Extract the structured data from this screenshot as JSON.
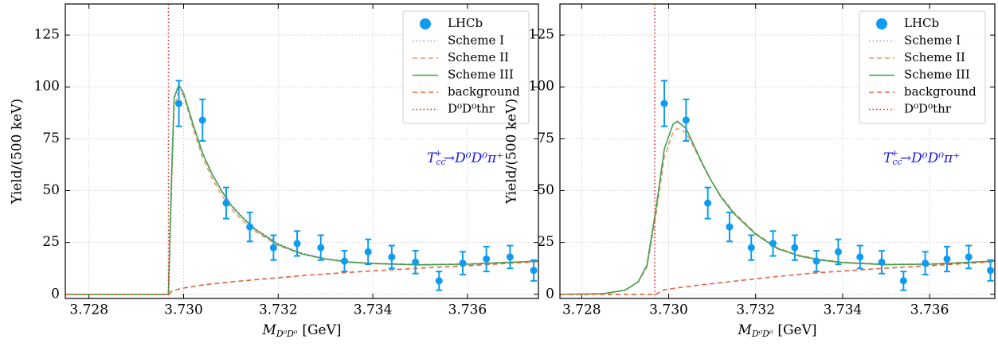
{
  "chart_data": [
    {
      "type": "line",
      "y_label": "Yield/(500 keV)",
      "x_label": {
        "symbol": "M",
        "sub": "D⁰D⁰",
        "unit": "[GeV]"
      },
      "annotation": {
        "main": "T",
        "sub": "cc",
        "sup": "+",
        "rest": "→D⁰D⁰π⁺"
      },
      "xlim": [
        3.7275,
        3.7375
      ],
      "ylim": [
        -2,
        140
      ],
      "xticks": [
        3.728,
        {
          "value": 3.73,
          "label": "3.730"
        },
        3.732,
        3.734,
        3.736
      ],
      "yticks": [
        0,
        25,
        50,
        75,
        100,
        125
      ],
      "grid": true,
      "legend": "upper right",
      "points": {
        "name": "LHCb",
        "color": "#0f9cf0",
        "x": [
          3.7299,
          3.7304,
          3.7309,
          3.7314,
          3.7319,
          3.7324,
          3.7329,
          3.7334,
          3.7339,
          3.7344,
          3.7349,
          3.7354,
          3.7359,
          3.7364,
          3.7369,
          3.7374
        ],
        "values": [
          92,
          84,
          44,
          32.5,
          22.5,
          24.5,
          22.5,
          16,
          20.5,
          18,
          15.5,
          6.5,
          15,
          17,
          18,
          11.5
        ],
        "errors": [
          11,
          10,
          7.5,
          7,
          6,
          6,
          6,
          5,
          6,
          5.5,
          5.5,
          4.5,
          5.5,
          6,
          5.5,
          5
        ]
      },
      "x": [
        3.7275,
        3.72968,
        3.72975,
        3.7298,
        3.7299,
        3.73,
        3.7302,
        3.7304,
        3.7306,
        3.7308,
        3.731,
        3.7312,
        3.7315,
        3.732,
        3.7325,
        3.733,
        3.7335,
        3.734,
        3.735,
        3.736,
        3.737,
        3.7375
      ],
      "series": [
        {
          "name": "Scheme I",
          "color": "#c77ce0",
          "linestyle": "dotted",
          "values": [
            0,
            0,
            59,
            94,
            100,
            96,
            82,
            68.5,
            58.5,
            50.5,
            43.5,
            38.5,
            32,
            24.5,
            20,
            17.3,
            15.8,
            15,
            14.3,
            14.5,
            15.5,
            16
          ]
        },
        {
          "name": "Scheme II",
          "color": "#ec9a76",
          "linestyle": "dashed",
          "values": [
            0,
            0,
            55,
            90,
            98,
            96,
            80,
            66,
            56,
            48,
            41.5,
            36.5,
            30.5,
            23.5,
            19.5,
            17,
            15.6,
            15,
            14.4,
            14.7,
            15.6,
            16
          ]
        },
        {
          "name": "Scheme III",
          "color": "#3fa34d",
          "linestyle": "solid",
          "values": [
            0,
            0,
            60,
            95,
            101,
            97,
            82,
            68,
            58,
            50,
            43,
            38,
            31.5,
            24,
            19.5,
            17,
            15.5,
            14.8,
            14.2,
            14.5,
            15.5,
            16
          ]
        },
        {
          "name": "background",
          "color": "#e2603c",
          "linestyle": "dashed",
          "values": [
            0,
            0,
            1.5,
            2,
            2.5,
            3,
            3.8,
            4.5,
            5,
            5.5,
            6,
            6.4,
            7,
            8,
            9,
            9.8,
            10.6,
            11.3,
            12.6,
            13.8,
            15.1,
            15.8
          ]
        }
      ],
      "threshold": {
        "name": "D⁰D⁰thr",
        "color": "#e8262a",
        "x": 3.72968
      }
    },
    {
      "type": "line",
      "y_label": "Yield/(500 keV)",
      "x_label": {
        "symbol": "M",
        "sub": "D⁰D⁰",
        "unit": "[GeV]"
      },
      "annotation": {
        "main": "T",
        "sub": "cc",
        "sup": "+",
        "rest": "→D⁰D⁰π⁺"
      },
      "xlim": [
        3.7275,
        3.7375
      ],
      "ylim": [
        -2,
        140
      ],
      "xticks": [
        3.728,
        {
          "value": 3.73,
          "label": "3.730"
        },
        3.732,
        3.734,
        3.736
      ],
      "yticks": [
        0,
        25,
        50,
        75,
        100,
        125
      ],
      "grid": true,
      "legend": "upper right",
      "points": {
        "name": "LHCb",
        "color": "#0f9cf0",
        "x": [
          3.7299,
          3.7304,
          3.7309,
          3.7314,
          3.7319,
          3.7324,
          3.7329,
          3.7334,
          3.7339,
          3.7344,
          3.7349,
          3.7354,
          3.7359,
          3.7364,
          3.7369,
          3.7374
        ],
        "values": [
          92,
          84,
          44,
          32.5,
          22.5,
          24.5,
          22.5,
          16,
          20.5,
          18,
          15.5,
          6.5,
          15,
          17,
          18,
          11.5
        ],
        "errors": [
          11,
          10,
          7.5,
          7,
          6,
          6,
          6,
          5,
          6,
          5.5,
          5.5,
          4.5,
          5.5,
          6,
          5.5,
          5
        ]
      },
      "x": [
        3.7275,
        3.7285,
        3.729,
        3.7293,
        3.7295,
        3.7297,
        3.7299,
        3.7301,
        3.7302,
        3.7304,
        3.7306,
        3.7308,
        3.731,
        3.7312,
        3.7315,
        3.732,
        3.7325,
        3.733,
        3.7335,
        3.734,
        3.735,
        3.736,
        3.737,
        3.7375
      ],
      "series": [
        {
          "name": "Scheme I",
          "color": "#c77ce0",
          "linestyle": "dotted",
          "values": [
            0,
            0.3,
            2,
            6,
            14,
            40,
            70,
            82,
            83,
            80,
            71,
            62,
            54,
            47,
            39,
            29,
            22.3,
            18.7,
            16.6,
            15.4,
            14.4,
            14.5,
            15.5,
            16
          ]
        },
        {
          "name": "Scheme II",
          "color": "#ec9a76",
          "linestyle": "dashed",
          "values": [
            0,
            0.3,
            2,
            6,
            13,
            37,
            66,
            78,
            80,
            78,
            70,
            61.5,
            54,
            47.5,
            39.5,
            29.5,
            22.5,
            18.8,
            16.8,
            15.5,
            14.5,
            14.7,
            15.6,
            16
          ]
        },
        {
          "name": "Scheme III",
          "color": "#3fa34d",
          "linestyle": "solid",
          "values": [
            0,
            0.3,
            2,
            6,
            14,
            40,
            70,
            82,
            83.5,
            80,
            71,
            62,
            54,
            47,
            39,
            29,
            22,
            18.5,
            16.5,
            15.3,
            14.3,
            14.5,
            15.5,
            16
          ]
        },
        {
          "name": "background",
          "color": "#e2603c",
          "linestyle": "dashed",
          "values": [
            0,
            0,
            0,
            0,
            0,
            0,
            2.2,
            2.8,
            3.1,
            3.6,
            4.2,
            4.7,
            5.1,
            5.6,
            6.3,
            7.5,
            8.6,
            9.6,
            10.5,
            11.2,
            12.6,
            13.8,
            15.1,
            15.8
          ]
        }
      ],
      "threshold": {
        "name": "D⁰D⁰thr",
        "color": "#e8262a",
        "x": 3.72968
      }
    }
  ]
}
